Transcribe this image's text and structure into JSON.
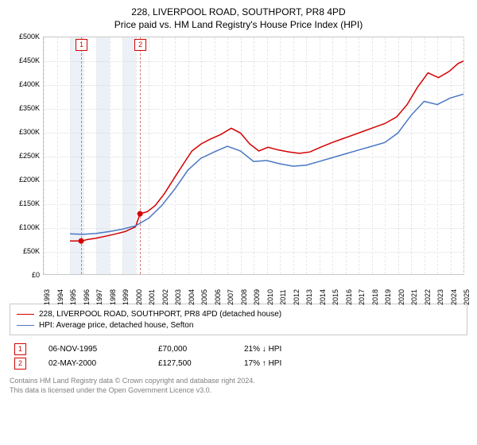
{
  "title_main": "228, LIVERPOOL ROAD, SOUTHPORT, PR8 4PD",
  "title_sub": "Price paid vs. HM Land Registry's House Price Index (HPI)",
  "chart": {
    "type": "line",
    "background_color": "#ffffff",
    "grid_color": "#dcdcdc",
    "yaxis": {
      "min": 0,
      "max": 500000,
      "step": 50000,
      "labels": [
        "£0",
        "£50K",
        "£100K",
        "£150K",
        "£200K",
        "£250K",
        "£300K",
        "£350K",
        "£400K",
        "£450K",
        "£500K"
      ]
    },
    "xaxis": {
      "years": [
        1993,
        1994,
        1995,
        1996,
        1997,
        1998,
        1999,
        2000,
        2001,
        2002,
        2003,
        2004,
        2005,
        2006,
        2007,
        2008,
        2009,
        2010,
        2011,
        2012,
        2013,
        2014,
        2015,
        2016,
        2017,
        2018,
        2019,
        2020,
        2021,
        2022,
        2023,
        2024,
        2025
      ]
    },
    "bands": [
      {
        "from": 1995,
        "to": 1996,
        "color": "rgba(200,215,235,0.35)"
      },
      {
        "from": 1997,
        "to": 1998,
        "color": "rgba(200,215,235,0.35)"
      },
      {
        "from": 1999,
        "to": 2000,
        "color": "rgba(200,215,235,0.35)"
      }
    ],
    "series": [
      {
        "name": "property",
        "label": "228, LIVERPOOL ROAD, SOUTHPORT, PR8 4PD (detached house)",
        "color": "#d40000",
        "line_width": 1.5,
        "points": [
          [
            1995.0,
            70000
          ],
          [
            1995.9,
            70000
          ],
          [
            1996.3,
            73000
          ],
          [
            1997.0,
            76000
          ],
          [
            1997.7,
            80000
          ],
          [
            1998.5,
            85000
          ],
          [
            1999.2,
            90000
          ],
          [
            2000.0,
            100000
          ],
          [
            2000.34,
            127500
          ],
          [
            2000.9,
            132000
          ],
          [
            2001.5,
            145000
          ],
          [
            2002.2,
            170000
          ],
          [
            2003.0,
            205000
          ],
          [
            2003.7,
            235000
          ],
          [
            2004.3,
            260000
          ],
          [
            2005.0,
            275000
          ],
          [
            2005.7,
            285000
          ],
          [
            2006.5,
            295000
          ],
          [
            2007.3,
            308000
          ],
          [
            2008.0,
            298000
          ],
          [
            2008.7,
            275000
          ],
          [
            2009.4,
            260000
          ],
          [
            2010.1,
            268000
          ],
          [
            2010.9,
            262000
          ],
          [
            2011.7,
            258000
          ],
          [
            2012.5,
            255000
          ],
          [
            2013.3,
            258000
          ],
          [
            2014.1,
            268000
          ],
          [
            2015.0,
            278000
          ],
          [
            2015.8,
            286000
          ],
          [
            2016.6,
            294000
          ],
          [
            2017.4,
            302000
          ],
          [
            2018.2,
            310000
          ],
          [
            2019.0,
            318000
          ],
          [
            2019.9,
            332000
          ],
          [
            2020.7,
            358000
          ],
          [
            2021.5,
            395000
          ],
          [
            2022.3,
            425000
          ],
          [
            2023.1,
            415000
          ],
          [
            2023.9,
            428000
          ],
          [
            2024.6,
            445000
          ],
          [
            2025.0,
            450000
          ]
        ]
      },
      {
        "name": "hpi",
        "label": "HPI: Average price, detached house, Sefton",
        "color": "#4a78c4",
        "line_width": 1.5,
        "points": [
          [
            1995.0,
            85000
          ],
          [
            1996.0,
            84000
          ],
          [
            1997.0,
            86000
          ],
          [
            1998.0,
            90000
          ],
          [
            1999.0,
            95000
          ],
          [
            2000.0,
            102000
          ],
          [
            2001.0,
            118000
          ],
          [
            2002.0,
            145000
          ],
          [
            2003.0,
            180000
          ],
          [
            2004.0,
            220000
          ],
          [
            2005.0,
            245000
          ],
          [
            2006.0,
            258000
          ],
          [
            2007.0,
            270000
          ],
          [
            2008.0,
            260000
          ],
          [
            2009.0,
            238000
          ],
          [
            2010.0,
            240000
          ],
          [
            2011.0,
            233000
          ],
          [
            2012.0,
            228000
          ],
          [
            2013.0,
            230000
          ],
          [
            2014.0,
            238000
          ],
          [
            2015.0,
            246000
          ],
          [
            2016.0,
            254000
          ],
          [
            2017.0,
            262000
          ],
          [
            2018.0,
            270000
          ],
          [
            2019.0,
            278000
          ],
          [
            2020.0,
            298000
          ],
          [
            2021.0,
            335000
          ],
          [
            2022.0,
            365000
          ],
          [
            2023.0,
            358000
          ],
          [
            2024.0,
            372000
          ],
          [
            2025.0,
            380000
          ]
        ]
      }
    ],
    "markers": [
      {
        "ref": 1,
        "year": 1995.85,
        "value": 70000
      },
      {
        "ref": 2,
        "year": 2000.34,
        "value": 127500
      }
    ]
  },
  "legend": {
    "items": [
      {
        "color": "#d40000",
        "text": "228, LIVERPOOL ROAD, SOUTHPORT, PR8 4PD (detached house)"
      },
      {
        "color": "#4a78c4",
        "text": "HPI: Average price, detached house, Sefton"
      }
    ]
  },
  "annotations": [
    {
      "idx": "1",
      "date": "06-NOV-1995",
      "price": "£70,000",
      "delta": "21% ↓ HPI"
    },
    {
      "idx": "2",
      "date": "02-MAY-2000",
      "price": "£127,500",
      "delta": "17% ↑ HPI"
    }
  ],
  "footer_line1": "Contains HM Land Registry data © Crown copyright and database right 2024.",
  "footer_line2": "This data is licensed under the Open Government Licence v3.0."
}
